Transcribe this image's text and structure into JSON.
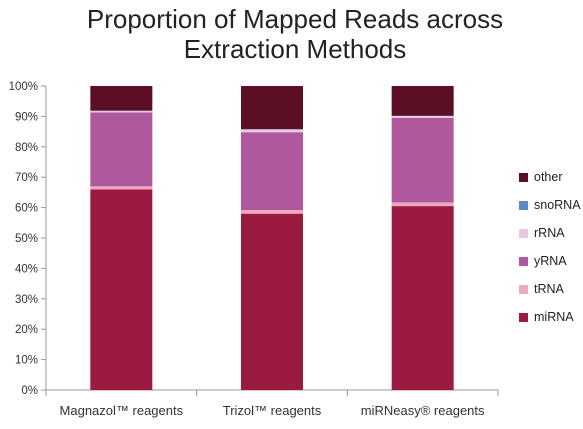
{
  "chart_data": {
    "type": "bar",
    "stacked": true,
    "title_lines": [
      "Proportion of Mapped Reads across",
      "Extraction Methods"
    ],
    "categories": [
      "Magnazol™ reagents",
      "Trizol™ reagents",
      "miRNeasy® reagents"
    ],
    "series": [
      {
        "name": "miRNA",
        "color": "#9B1B40",
        "values": [
          66,
          58,
          60.5
        ]
      },
      {
        "name": "tRNA",
        "color": "#F0A8C0",
        "values": [
          1,
          1.2,
          1.2
        ]
      },
      {
        "name": "yRNA",
        "color": "#B0589E",
        "values": [
          24.3,
          25.6,
          27.8
        ]
      },
      {
        "name": "rRNA",
        "color": "#E8C8E0",
        "values": [
          0.5,
          0.9,
          0.6
        ]
      },
      {
        "name": "snoRNA",
        "color": "#5B8DC4",
        "values": [
          0.1,
          0.1,
          0.1
        ]
      },
      {
        "name": "other",
        "color": "#5C0F24",
        "values": [
          8.1,
          14.2,
          9.8
        ]
      }
    ],
    "ylim": [
      0,
      100
    ],
    "yticks": [
      "0%",
      "10%",
      "20%",
      "30%",
      "40%",
      "50%",
      "60%",
      "70%",
      "80%",
      "90%",
      "100%"
    ],
    "legend_position": "right",
    "legend_order": [
      "other",
      "snoRNA",
      "rRNA",
      "yRNA",
      "tRNA",
      "miRNA"
    ],
    "grid": false
  }
}
